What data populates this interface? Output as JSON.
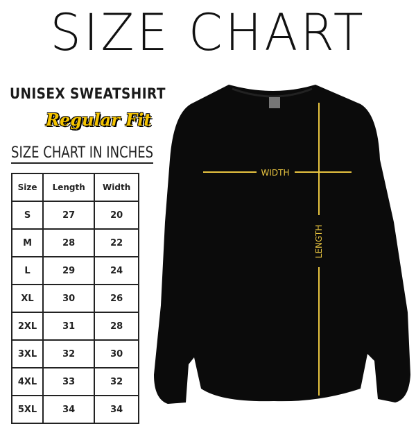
{
  "header": {
    "title": "SIZE CHART",
    "product": "UNISEX SWEATSHIRT",
    "fit": "Regular Fit",
    "table_caption": "SIZE CHART IN INCHES"
  },
  "table": {
    "columns": [
      "Size",
      "Length",
      "Width"
    ],
    "rows": [
      [
        "S",
        27,
        20
      ],
      [
        "M",
        28,
        22
      ],
      [
        "L",
        29,
        24
      ],
      [
        "XL",
        30,
        26
      ],
      [
        "2XL",
        31,
        28
      ],
      [
        "3XL",
        32,
        30
      ],
      [
        "4XL",
        33,
        32
      ],
      [
        "5XL",
        34,
        34
      ]
    ]
  },
  "garment": {
    "width_label": "WIDTH",
    "length_label": "LENGTH"
  }
}
